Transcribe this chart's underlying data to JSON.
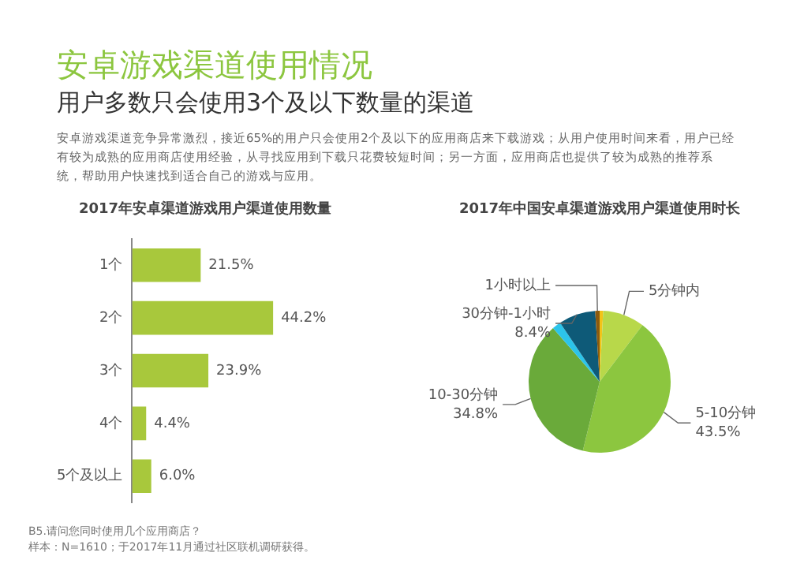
{
  "chart_data": [
    {
      "type": "other",
      "title": "安卓游戏渠道使用情况",
      "subtitle": "用户多数只会使用3个及以下数量的渠道",
      "annotations": [
        "安卓游戏渠道竞争异常激烈，接近65%的用户只会使用2个及以下的应用商店来下载游戏；从用户使用时间来看，用户已经有较为成熟的应用商店使用经验，从寻找应用到下载只花费较短时间；另一方面，应用商店也提供了较为成熟的推荐系统，帮助用户快速找到适合自己的游戏与应用。"
      ]
    },
    {
      "type": "bar",
      "orientation": "horizontal",
      "title": "2017年安卓渠道游戏用户渠道使用数量",
      "categories": [
        "1个",
        "2个",
        "3个",
        "4个",
        "5个及以上"
      ],
      "values": [
        21.5,
        44.2,
        23.9,
        4.4,
        6.0
      ],
      "value_labels": [
        "21.5%",
        "44.2%",
        "23.9%",
        "4.4%",
        "6.0%"
      ],
      "color": "#a8c83c",
      "tick_labels": "y",
      "legend": false,
      "annotations": [
        "B5.请问您同时使用几个应用商店？",
        "样本：N=1610；于2017年11月通过社区联机调研获得。"
      ]
    },
    {
      "type": "pie",
      "title": "2017年中国安卓渠道游戏用户渠道使用时长",
      "categories": [
        null,
        "5分钟内",
        "5-10分钟",
        "10-30分钟",
        null,
        "30分钟-1小时",
        "1小时以上"
      ],
      "values": [
        0.8,
        9.5,
        43.5,
        34.8,
        2.0,
        8.4,
        1.0
      ],
      "value_labels": [
        null,
        null,
        "43.5%",
        "34.8%",
        null,
        "8.4%",
        null
      ],
      "colors": [
        "#f2c318",
        "#b8d84a",
        "#8cc63f",
        "#6aaa3a",
        "#2cc4ea",
        "#0e5a78",
        "#8a5a10"
      ],
      "legend": false
    }
  ]
}
